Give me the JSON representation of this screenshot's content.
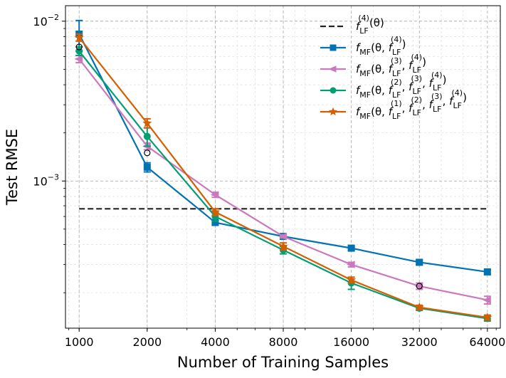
{
  "chart_data": {
    "type": "line",
    "title": "",
    "xlabel": "Number of Training Samples",
    "ylabel": "Test RMSE",
    "xscale": "log2",
    "yscale": "log10",
    "x": [
      1000,
      2000,
      4000,
      8000,
      16000,
      32000,
      64000
    ],
    "xtick_labels": [
      "1000",
      "2000",
      "4000",
      "8000",
      "16000",
      "32000",
      "64000"
    ],
    "ytick_major": [
      {
        "value": 0.01,
        "base": "10",
        "exp": "−2"
      },
      {
        "value": 0.001,
        "base": "10",
        "exp": "−3"
      }
    ],
    "ylim": [
      0.00012,
      0.0125
    ],
    "xlim": [
      870,
      73000
    ],
    "grid": true,
    "legend_position": "top-right",
    "reference_line": {
      "name": "f_LF^(4)(θ)",
      "value": 0.00067,
      "x_range": [
        1000,
        64000
      ],
      "color": "#222222",
      "style": "dashed"
    },
    "series": [
      {
        "name": "f_MF(θ, f_LF^(4))",
        "color": "#0173b2",
        "marker": "square",
        "values": [
          0.0083,
          0.00122,
          0.00055,
          0.00045,
          0.00038,
          0.00031,
          0.00027
        ],
        "error": [
          0.0018,
          8e-05,
          2e-05,
          1e-05,
          1e-05,
          1e-05,
          1e-05
        ]
      },
      {
        "name": "f_MF(θ, f_LF^(3), f_LF^(4))",
        "color": "#cc78bc",
        "marker": "triangle-left",
        "values": [
          0.0058,
          0.00165,
          0.00082,
          0.00045,
          0.0003,
          0.00022,
          0.00018
        ],
        "error": [
          0.0003,
          8e-05,
          3e-05,
          1e-05,
          1e-05,
          1e-05,
          1e-05
        ]
      },
      {
        "name": "f_MF(θ, f_LF^(2), f_LF^(3), f_LF^(4))",
        "color": "#029e73",
        "marker": "circle",
        "values": [
          0.0065,
          0.0019,
          0.0006,
          0.00037,
          0.00023,
          0.00016,
          0.000138
        ],
        "error": [
          0.0004,
          0.00025,
          4e-05,
          2e-05,
          2e-05,
          5e-06,
          5e-06
        ]
      },
      {
        "name": "f_MF(θ, f_LF^(1), f_LF^(2), f_LF^(3), f_LF^(4))",
        "color": "#d55e00",
        "marker": "star",
        "values": [
          0.0079,
          0.0023,
          0.00064,
          0.00039,
          0.00024,
          0.000162,
          0.00014
        ],
        "error": [
          0.0004,
          0.00015,
          3e-05,
          2e-05,
          1e-05,
          5e-06,
          5e-06
        ]
      }
    ],
    "extra_points": {
      "marker": "open-circle",
      "color": "#000000",
      "points": [
        {
          "x": 1000,
          "y": 0.0069
        },
        {
          "x": 2000,
          "y": 0.0015
        },
        {
          "x": 32000,
          "y": 0.00022
        }
      ]
    },
    "legend_items": [
      {
        "main": "f",
        "sub": "LF",
        "sup": "(4)",
        "tail": "(θ)"
      },
      {
        "parts": [
          {
            "t": "f"
          },
          {
            "t": "MF",
            "sub": true
          },
          {
            "t": "(θ, "
          },
          {
            "t": "f"
          },
          {
            "t": "LF",
            "sub": true
          },
          {
            "t": "(4)",
            "sup": true
          },
          {
            "t": ")"
          }
        ]
      },
      {
        "parts": [
          {
            "t": "f"
          },
          {
            "t": "MF",
            "sub": true
          },
          {
            "t": "(θ, "
          },
          {
            "t": "f"
          },
          {
            "t": "LF",
            "sub": true
          },
          {
            "t": "(3)",
            "sup": true
          },
          {
            "t": ", "
          },
          {
            "t": "f"
          },
          {
            "t": "LF",
            "sub": true
          },
          {
            "t": "(4)",
            "sup": true
          },
          {
            "t": ")"
          }
        ]
      },
      {
        "parts": [
          {
            "t": "f"
          },
          {
            "t": "MF",
            "sub": true
          },
          {
            "t": "(θ, "
          },
          {
            "t": "f"
          },
          {
            "t": "LF",
            "sub": true
          },
          {
            "t": "(2)",
            "sup": true
          },
          {
            "t": ", "
          },
          {
            "t": "f"
          },
          {
            "t": "LF",
            "sub": true
          },
          {
            "t": "(3)",
            "sup": true
          },
          {
            "t": ", "
          },
          {
            "t": "f"
          },
          {
            "t": "LF",
            "sub": true
          },
          {
            "t": "(4)",
            "sup": true
          },
          {
            "t": ")"
          }
        ]
      },
      {
        "parts": [
          {
            "t": "f"
          },
          {
            "t": "MF",
            "sub": true
          },
          {
            "t": "(θ, "
          },
          {
            "t": "f"
          },
          {
            "t": "LF",
            "sub": true
          },
          {
            "t": "(1)",
            "sup": true
          },
          {
            "t": ", "
          },
          {
            "t": "f"
          },
          {
            "t": "LF",
            "sub": true
          },
          {
            "t": "(2)",
            "sup": true
          },
          {
            "t": ", "
          },
          {
            "t": "f"
          },
          {
            "t": "LF",
            "sub": true
          },
          {
            "t": "(3)",
            "sup": true
          },
          {
            "t": ", "
          },
          {
            "t": "f"
          },
          {
            "t": "LF",
            "sub": true
          },
          {
            "t": "(4)",
            "sup": true
          },
          {
            "t": ")"
          }
        ]
      }
    ]
  }
}
